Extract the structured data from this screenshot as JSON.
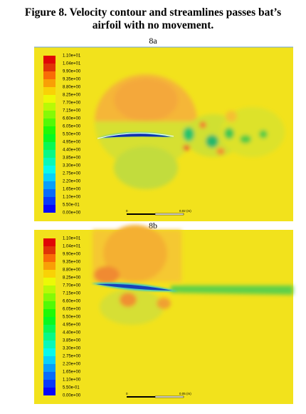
{
  "figure": {
    "title_line1": "Figure 8. Velocity contour and streamlines passes bat’s",
    "title_line2": "airfoil with no movement.",
    "panels": [
      {
        "label": "8a",
        "scale_start": "0",
        "scale_end": "0.02 (m)"
      },
      {
        "label": "8b",
        "scale_start": "0",
        "scale_end": "0.05 (m)"
      }
    ],
    "colorbar_labels": [
      "1.10e+01",
      "1.04e+01",
      "9.90e+00",
      "9.35e+00",
      "8.80e+00",
      "8.25e+00",
      "7.70e+00",
      "7.15e+00",
      "6.60e+00",
      "6.05e+00",
      "5.50e+00",
      "4.95e+00",
      "4.40e+00",
      "3.85e+00",
      "3.30e+00",
      "2.75e+00",
      "2.20e+00",
      "1.65e+00",
      "1.10e+00",
      "5.50e-01",
      "0.00e+00"
    ]
  }
}
